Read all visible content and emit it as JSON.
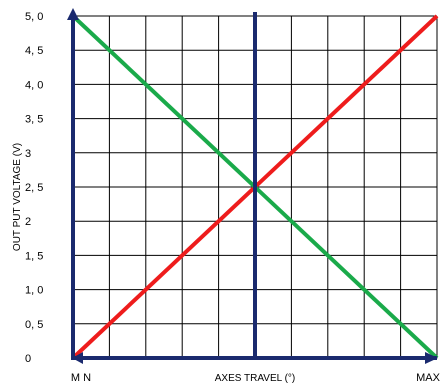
{
  "chart_data": {
    "type": "line",
    "title": "",
    "xlabel": "AXES TRAVEL (°)",
    "ylabel": "OUT PUT VOLTAGE (V)",
    "x_tick_labels": [
      "M N",
      "MAX"
    ],
    "y_tick_labels": [
      "0",
      "0, 5",
      "1, 0",
      "1, 5",
      "2",
      "2, 5",
      "3",
      "3, 5",
      "4, 0",
      "4, 5",
      "5, 0"
    ],
    "xlim": [
      0,
      100
    ],
    "ylim": [
      0,
      5
    ],
    "grid": true,
    "x_grid_step": 10,
    "y_grid_step": 0.5,
    "center_line_x": 50,
    "series": [
      {
        "x": [
          0,
          100
        ],
        "y": [
          0,
          5
        ],
        "color": "#ee1c1c"
      },
      {
        "x": [
          0,
          100
        ],
        "y": [
          5,
          0
        ],
        "color": "#1aaa4a"
      }
    ],
    "colors": {
      "grid": "#000000",
      "axis": "#1a2a6e",
      "center_line": "#1a2a6e"
    }
  }
}
